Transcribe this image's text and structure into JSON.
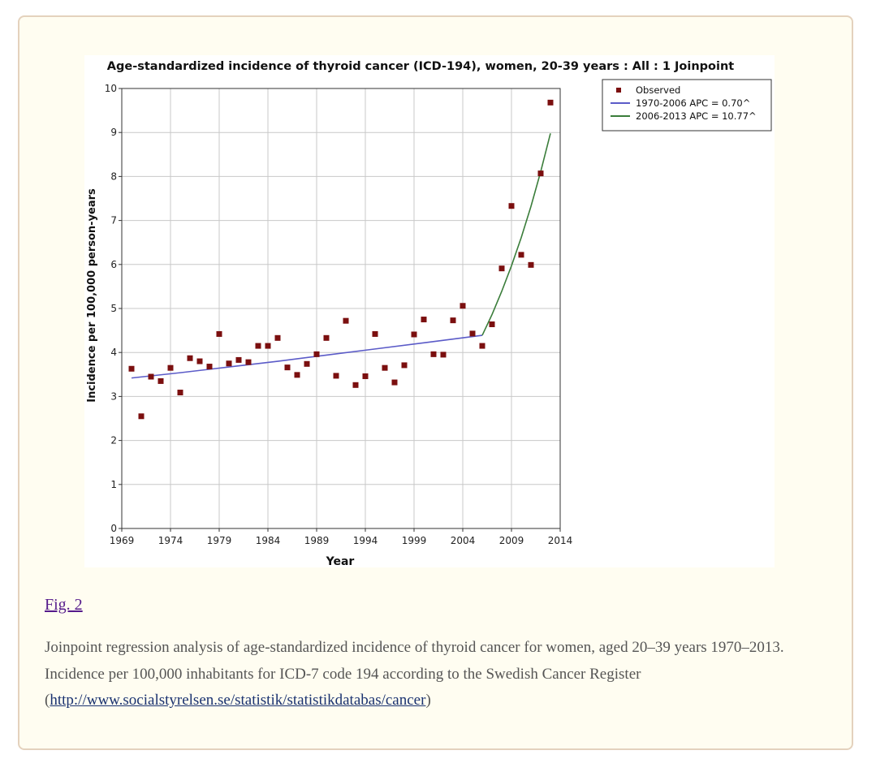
{
  "figure": {
    "link_label": "Fig. 2",
    "caption_text": "Joinpoint regression analysis of age-standardized incidence of thyroid cancer for women, aged 20–39 years 1970–2013. Incidence per 100,000 inhabitants for ICD-7 code 194 according to the Swedish Cancer Register (",
    "caption_link": "http://www.socialstyrelsen.se/statistik/statistikdatabas/cancer",
    "caption_end": ")"
  },
  "colors": {
    "observed": "#7b0f0f",
    "segment1": "#5b5bc8",
    "segment2": "#3a7d3a",
    "grid": "#c8c8c8",
    "panel_bg": "#fffdf1",
    "panel_border": "#e4d2bd"
  },
  "chart_data": {
    "type": "scatter",
    "title": "Age-standardized incidence of thyroid cancer (ICD-194), women, 20-39 years : All : 1 Joinpoint",
    "xlabel": "Year",
    "ylabel": "Incidence per 100,000 person-years",
    "xlim": [
      1969,
      2014
    ],
    "ylim": [
      0,
      10
    ],
    "xticks": [
      1969,
      1974,
      1979,
      1984,
      1989,
      1994,
      1999,
      2004,
      2009,
      2014
    ],
    "yticks": [
      0,
      1,
      2,
      3,
      4,
      5,
      6,
      7,
      8,
      9,
      10
    ],
    "grid": true,
    "legend_position": "top-right",
    "series": [
      {
        "name": "Observed",
        "kind": "points",
        "x": [
          1970,
          1971,
          1972,
          1973,
          1974,
          1975,
          1976,
          1977,
          1978,
          1979,
          1980,
          1981,
          1982,
          1983,
          1984,
          1985,
          1986,
          1987,
          1988,
          1989,
          1990,
          1991,
          1992,
          1993,
          1994,
          1995,
          1996,
          1997,
          1998,
          1999,
          2000,
          2001,
          2002,
          2003,
          2004,
          2005,
          2006,
          2007,
          2008,
          2009,
          2010,
          2011,
          2012,
          2013
        ],
        "y": [
          3.63,
          2.55,
          3.45,
          3.35,
          3.65,
          3.09,
          3.87,
          3.8,
          3.68,
          4.42,
          3.75,
          3.83,
          3.78,
          4.15,
          4.15,
          4.33,
          3.66,
          3.49,
          3.74,
          3.96,
          4.33,
          3.47,
          4.72,
          3.26,
          3.46,
          4.42,
          3.65,
          3.32,
          3.71,
          4.41,
          4.75,
          3.96,
          3.95,
          4.73,
          5.06,
          4.43,
          4.15,
          4.64,
          5.91,
          7.33,
          6.22,
          5.99,
          8.07,
          9.68
        ]
      },
      {
        "name": "1970-2006 APC  = 0.70^",
        "kind": "line",
        "x": [
          1970,
          1975,
          1980,
          1985,
          1990,
          1995,
          2000,
          2006
        ],
        "y": [
          3.42,
          3.54,
          3.67,
          3.8,
          3.94,
          4.08,
          4.22,
          4.39
        ]
      },
      {
        "name": "2006-2013 APC  = 10.77^",
        "kind": "line",
        "x": [
          2006,
          2007,
          2008,
          2009,
          2010,
          2011,
          2012,
          2013
        ],
        "y": [
          4.39,
          4.86,
          5.39,
          5.97,
          6.61,
          7.32,
          8.11,
          8.98
        ]
      }
    ]
  }
}
